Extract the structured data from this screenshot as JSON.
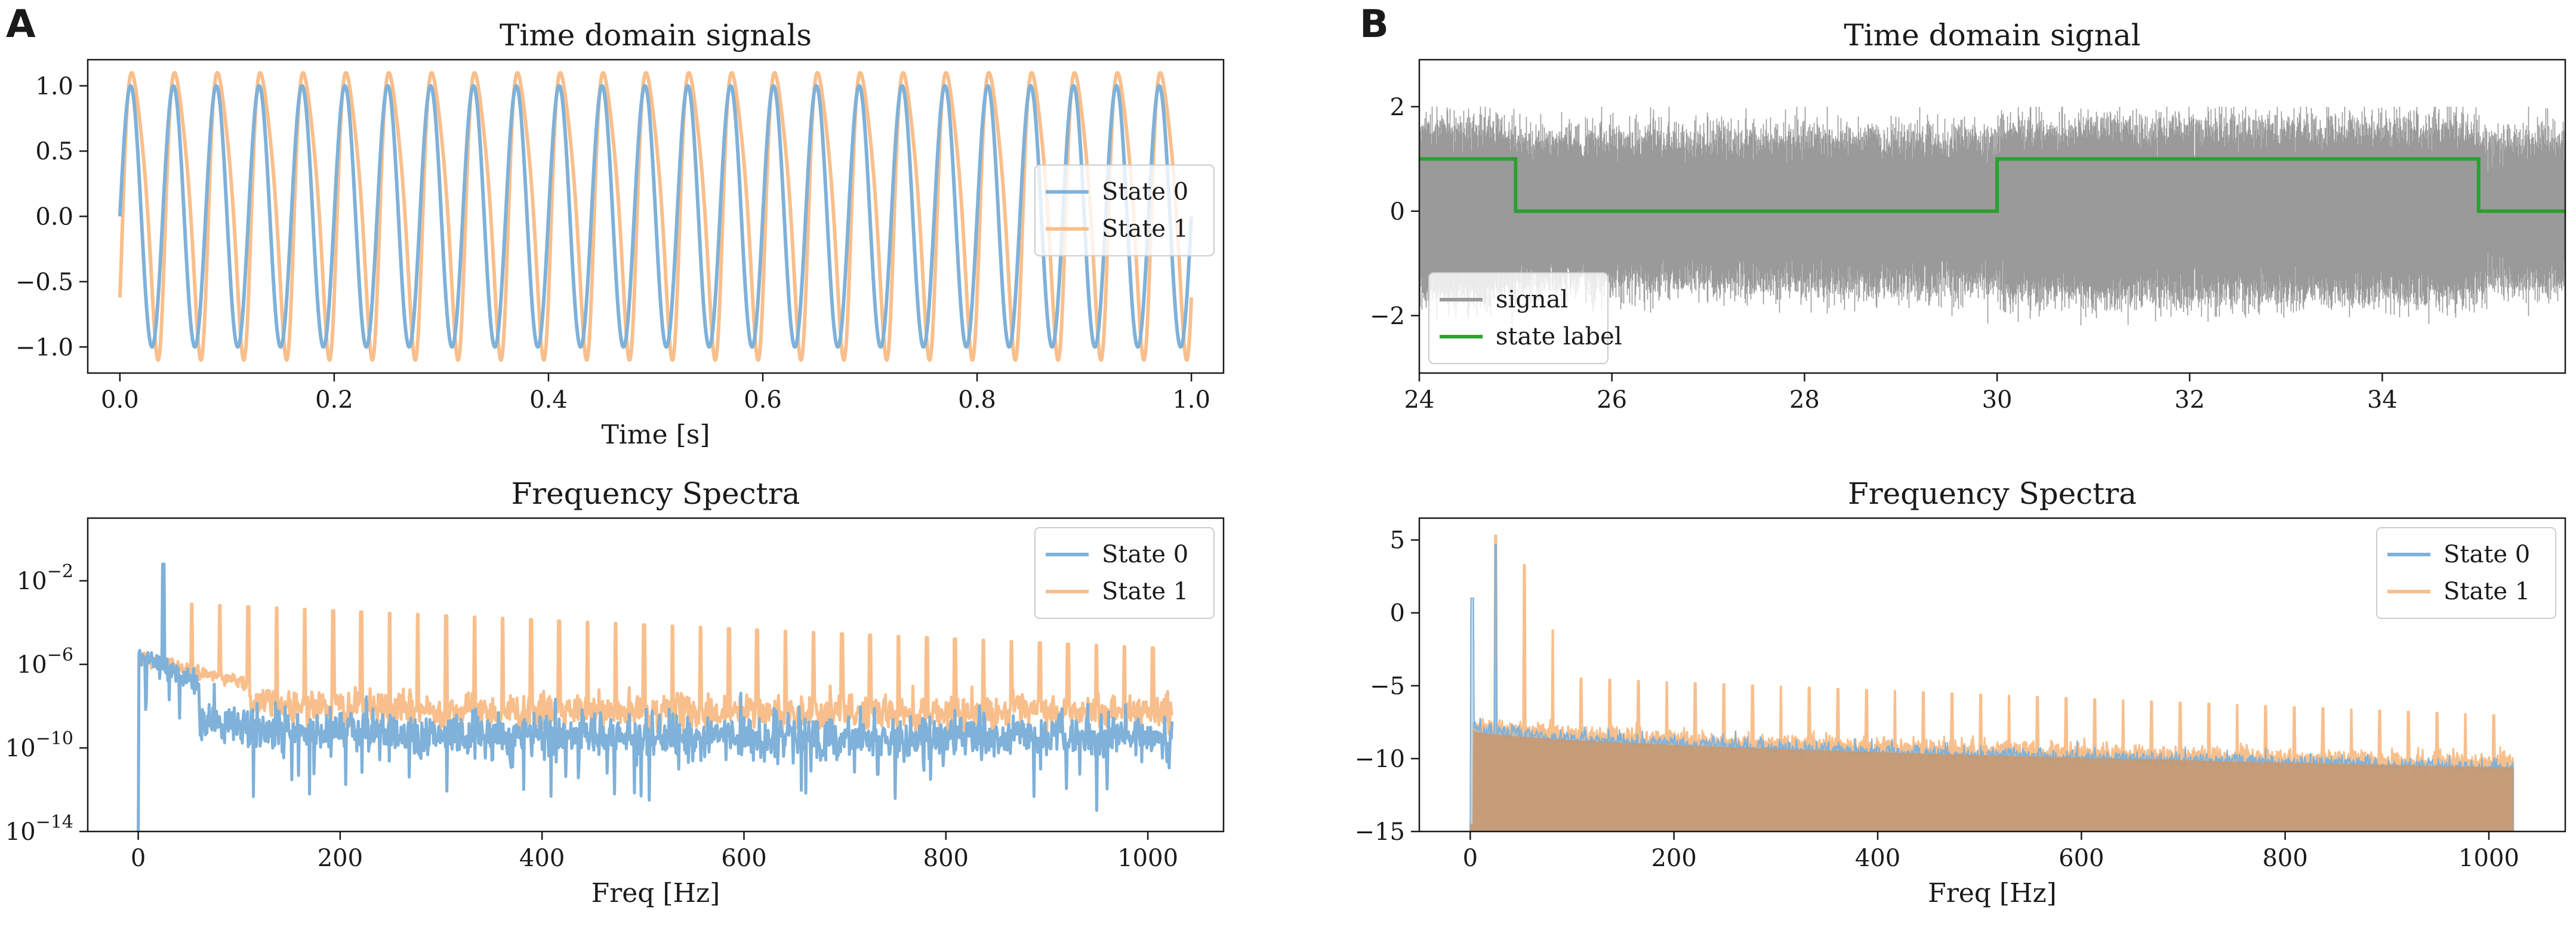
{
  "figure": {
    "panel_labels": [
      "A",
      "B"
    ]
  },
  "chart_data": [
    {
      "id": "A-time",
      "type": "line",
      "title": "Time domain signals",
      "xlabel": "Time [s]",
      "ylabel": "",
      "xlim": [
        -0.03,
        1.03
      ],
      "ylim": [
        -1.2,
        1.2
      ],
      "xticks": [
        0.0,
        0.2,
        0.4,
        0.6,
        0.8,
        1.0
      ],
      "xtick_labels": [
        "0.0",
        "0.2",
        "0.4",
        "0.6",
        "0.8",
        "1.0"
      ],
      "yticks": [
        1.0,
        0.5,
        0.0,
        -0.5,
        -1.0
      ],
      "ytick_labels": [
        "1.0",
        "0.5",
        "0.0",
        "−0.5",
        "−1.0"
      ],
      "legend": {
        "position": "center-right"
      },
      "series": [
        {
          "name": "State 0",
          "color": "#7fb1d9",
          "waveform": "sine",
          "frequency_hz": 25,
          "amplitude": 1.0,
          "x_range": [
            0,
            1
          ]
        },
        {
          "name": "State 1",
          "color": "#f8bf8c",
          "waveform": "distorted sine",
          "frequency_hz": 25,
          "amplitude": 1.1,
          "x_range": [
            0,
            1
          ]
        }
      ]
    },
    {
      "id": "A-spectra",
      "type": "line",
      "title": "Frequency Spectra",
      "xlabel": "Freq [Hz]",
      "ylabel": "",
      "yscale": "log",
      "xlim": [
        -50,
        1075
      ],
      "ylim_log10": [
        -14,
        1
      ],
      "xticks": [
        0,
        200,
        400,
        600,
        800,
        1000
      ],
      "xtick_labels": [
        "0",
        "200",
        "400",
        "600",
        "800",
        "1000"
      ],
      "yticks_log10": [
        -2,
        -6,
        -10,
        -14
      ],
      "ytick_base": "10",
      "ytick_exponents": [
        "−2",
        "−6",
        "−10",
        "−14"
      ],
      "legend": {
        "position": "top-right"
      },
      "series": [
        {
          "name": "State 0",
          "color": "#7fb1d9",
          "peak_hz": 25,
          "peak_log10": -1.2,
          "floor_log10": -9.5,
          "x_range": [
            0,
            1024
          ]
        },
        {
          "name": "State 1",
          "color": "#f8bf8c",
          "fundamental_hz": 25,
          "harmonic_spacing_hz": 28,
          "peak_log10": -1.8,
          "floor_log10": -8.3,
          "x_range": [
            0,
            1024
          ]
        }
      ]
    },
    {
      "id": "B-time",
      "type": "line",
      "title": "Time domain signal",
      "xlabel": "",
      "ylabel": "",
      "xlim": [
        24,
        35.9
      ],
      "ylim": [
        -3.1,
        2.9
      ],
      "xticks": [
        24,
        26,
        28,
        30,
        32,
        34
      ],
      "xtick_labels": [
        "24",
        "26",
        "28",
        "30",
        "32",
        "34"
      ],
      "yticks": [
        2,
        0,
        -2
      ],
      "ytick_labels": [
        "2",
        "0",
        "−2"
      ],
      "legend": {
        "position": "lower-left"
      },
      "series": [
        {
          "name": "signal",
          "color": "#9a9a9a",
          "description": "noisy oscillation",
          "amplitude_range": [
            -2.2,
            2.0
          ],
          "x_range": [
            24,
            35.9
          ]
        },
        {
          "name": "state label",
          "color": "#2ca02c",
          "step": true,
          "x": [
            24,
            25,
            25,
            30,
            30,
            35,
            35,
            35.9
          ],
          "y": [
            1,
            1,
            0,
            0,
            1,
            1,
            0,
            0
          ]
        }
      ]
    },
    {
      "id": "B-spectra",
      "type": "line",
      "title": "Frequency Spectra",
      "xlabel": "Freq [Hz]",
      "ylabel": "",
      "xlim": [
        -50,
        1075
      ],
      "ylim": [
        -15,
        6.5
      ],
      "xticks": [
        0,
        200,
        400,
        600,
        800,
        1000
      ],
      "xtick_labels": [
        "0",
        "200",
        "400",
        "600",
        "800",
        "1000"
      ],
      "yticks": [
        5,
        0,
        -5,
        -10,
        -15
      ],
      "ytick_labels": [
        "5",
        "0",
        "−5",
        "−10",
        "−15"
      ],
      "legend": {
        "position": "top-right"
      },
      "series": [
        {
          "name": "State 0",
          "color": "#7fb1d9",
          "peak_hz": 25,
          "peak_value": 4.7,
          "x_range": [
            0,
            1024
          ]
        },
        {
          "name": "State 1",
          "color": "#f8bf8c",
          "fundamental_hz": 25,
          "harmonic_spacing_hz": 28,
          "peak_value": 5.3,
          "floor_start": -7.5,
          "floor_end": -10.3,
          "x_range": [
            0,
            1024
          ]
        }
      ]
    }
  ]
}
